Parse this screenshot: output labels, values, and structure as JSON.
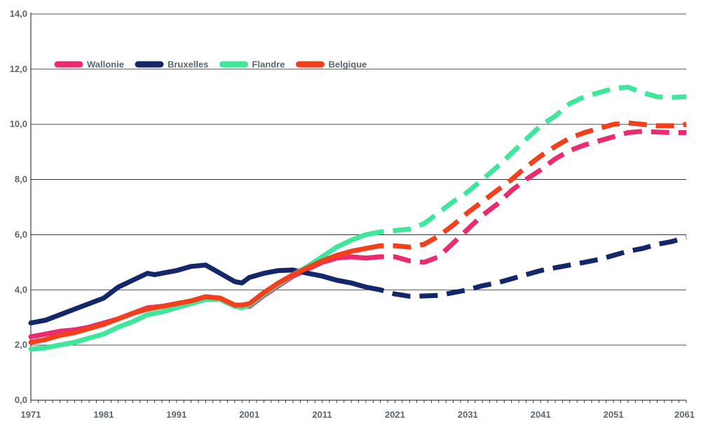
{
  "chart_data": {
    "type": "line",
    "title": "",
    "xlabel": "",
    "ylabel": "",
    "xlim": [
      1971,
      2061
    ],
    "ylim": [
      0,
      14
    ],
    "grid": true,
    "legend_position": "top-left",
    "x_ticks": [
      1971,
      1981,
      1991,
      2001,
      2011,
      2021,
      2031,
      2041,
      2051,
      2061
    ],
    "x_tick_labels": [
      "1971",
      "1981",
      "1991",
      "2001",
      "2011",
      "2021",
      "2031",
      "2041",
      "2051",
      "2061"
    ],
    "y_ticks": [
      0,
      2,
      4,
      6,
      8,
      10,
      12,
      14
    ],
    "y_tick_labels": [
      "0,0",
      "2,0",
      "4,0",
      "6,0",
      "8,0",
      "10,0",
      "12,0",
      "14,0"
    ],
    "forecast_start": 2017,
    "series": [
      {
        "name": "Wallonie",
        "color": "#ea2b72",
        "x": [
          1971,
          1973,
          1975,
          1977,
          1979,
          1981,
          1983,
          1985,
          1987,
          1989,
          1991,
          1993,
          1995,
          1997,
          1999,
          2000,
          2001,
          2003,
          2005,
          2007,
          2009,
          2011,
          2013,
          2015,
          2017,
          2019,
          2021,
          2023,
          2025,
          2027,
          2029,
          2031,
          2033,
          2035,
          2037,
          2039,
          2041,
          2043,
          2045,
          2047,
          2049,
          2051,
          2053,
          2055,
          2057,
          2059,
          2061
        ],
        "values": [
          2.3,
          2.4,
          2.5,
          2.55,
          2.65,
          2.8,
          2.95,
          3.15,
          3.35,
          3.4,
          3.5,
          3.6,
          3.75,
          3.7,
          3.45,
          3.4,
          3.4,
          3.8,
          4.15,
          4.5,
          4.75,
          5.0,
          5.15,
          5.2,
          5.15,
          5.2,
          5.2,
          5.05,
          5.0,
          5.2,
          5.7,
          6.2,
          6.7,
          7.1,
          7.6,
          8.0,
          8.35,
          8.75,
          9.05,
          9.25,
          9.4,
          9.55,
          9.7,
          9.75,
          9.72,
          9.7,
          9.7
        ]
      },
      {
        "name": "Bruxelles",
        "color": "#14276b",
        "x": [
          1971,
          1973,
          1975,
          1977,
          1979,
          1981,
          1983,
          1985,
          1987,
          1988,
          1989,
          1991,
          1993,
          1995,
          1997,
          1999,
          2000,
          2001,
          2003,
          2005,
          2007,
          2009,
          2011,
          2013,
          2015,
          2017,
          2019,
          2021,
          2023,
          2025,
          2027,
          2029,
          2031,
          2033,
          2035,
          2037,
          2039,
          2041,
          2043,
          2045,
          2047,
          2049,
          2051,
          2053,
          2055,
          2057,
          2059,
          2061
        ],
        "values": [
          2.8,
          2.9,
          3.1,
          3.3,
          3.5,
          3.7,
          4.1,
          4.35,
          4.6,
          4.55,
          4.6,
          4.7,
          4.85,
          4.9,
          4.6,
          4.3,
          4.25,
          4.45,
          4.6,
          4.7,
          4.72,
          4.6,
          4.5,
          4.35,
          4.25,
          4.1,
          4.0,
          3.85,
          3.77,
          3.78,
          3.8,
          3.9,
          4.0,
          4.15,
          4.25,
          4.4,
          4.55,
          4.7,
          4.8,
          4.9,
          5.0,
          5.1,
          5.25,
          5.4,
          5.5,
          5.65,
          5.75,
          5.9
        ]
      },
      {
        "name": "Flandre",
        "color": "#3ee79b",
        "x": [
          1971,
          1973,
          1975,
          1977,
          1979,
          1981,
          1983,
          1985,
          1987,
          1989,
          1991,
          1993,
          1995,
          1997,
          1999,
          2000,
          2001,
          2003,
          2005,
          2007,
          2009,
          2011,
          2013,
          2015,
          2017,
          2019,
          2021,
          2023,
          2025,
          2027,
          2029,
          2031,
          2033,
          2035,
          2037,
          2039,
          2041,
          2043,
          2045,
          2047,
          2049,
          2051,
          2053,
          2055,
          2057,
          2059,
          2061
        ],
        "values": [
          1.85,
          1.9,
          2.0,
          2.1,
          2.25,
          2.4,
          2.65,
          2.85,
          3.1,
          3.2,
          3.35,
          3.5,
          3.65,
          3.65,
          3.4,
          3.35,
          3.45,
          3.85,
          4.2,
          4.55,
          4.85,
          5.2,
          5.55,
          5.8,
          6.0,
          6.1,
          6.15,
          6.2,
          6.4,
          6.8,
          7.2,
          7.55,
          8.0,
          8.45,
          8.95,
          9.45,
          9.95,
          10.3,
          10.75,
          11.0,
          11.15,
          11.3,
          11.35,
          11.15,
          11.0,
          10.98,
          11.0
        ]
      },
      {
        "name": "Belgique",
        "color": "#f2401c",
        "x": [
          1971,
          1973,
          1975,
          1977,
          1979,
          1981,
          1983,
          1985,
          1987,
          1989,
          1991,
          1993,
          1995,
          1997,
          1999,
          2000,
          2001,
          2003,
          2005,
          2007,
          2009,
          2011,
          2013,
          2015,
          2017,
          2019,
          2021,
          2023,
          2025,
          2027,
          2029,
          2031,
          2033,
          2035,
          2037,
          2039,
          2041,
          2043,
          2045,
          2047,
          2049,
          2051,
          2053,
          2055,
          2057,
          2059,
          2061
        ],
        "values": [
          2.1,
          2.2,
          2.35,
          2.45,
          2.6,
          2.75,
          2.95,
          3.15,
          3.3,
          3.4,
          3.5,
          3.6,
          3.75,
          3.7,
          3.45,
          3.45,
          3.5,
          3.9,
          4.25,
          4.55,
          4.8,
          5.05,
          5.25,
          5.4,
          5.5,
          5.6,
          5.6,
          5.55,
          5.65,
          5.95,
          6.35,
          6.8,
          7.2,
          7.6,
          8.0,
          8.45,
          8.85,
          9.2,
          9.5,
          9.7,
          9.85,
          10.0,
          10.05,
          10.0,
          9.95,
          9.95,
          10.0
        ]
      }
    ]
  }
}
